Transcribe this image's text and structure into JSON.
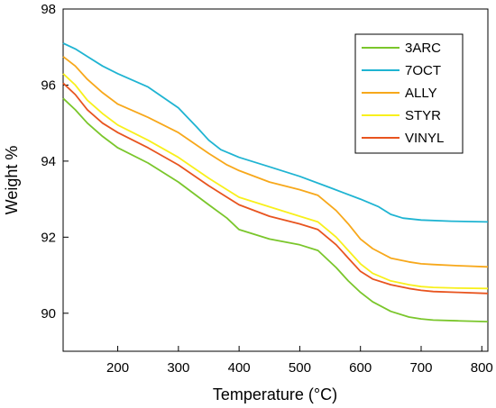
{
  "chart_data": {
    "type": "line",
    "xlabel": "Temperature (°C)",
    "ylabel": "Weight %",
    "xlim": [
      110,
      810
    ],
    "ylim": [
      89,
      98
    ],
    "xticks": [
      200,
      300,
      400,
      500,
      600,
      700,
      800
    ],
    "yticks": [
      90,
      92,
      94,
      96,
      98
    ],
    "grid": false,
    "legend_position": "top-right",
    "series": [
      {
        "name": "3ARC",
        "color": "#7ac62b",
        "x": [
          110,
          130,
          150,
          175,
          200,
          250,
          300,
          350,
          380,
          400,
          450,
          500,
          530,
          560,
          580,
          600,
          620,
          650,
          680,
          700,
          720,
          760,
          810
        ],
        "y": [
          95.65,
          95.35,
          95.0,
          94.65,
          94.35,
          93.95,
          93.45,
          92.85,
          92.5,
          92.2,
          91.95,
          91.8,
          91.65,
          91.2,
          90.85,
          90.55,
          90.3,
          90.05,
          89.9,
          89.85,
          89.82,
          89.8,
          89.78
        ]
      },
      {
        "name": "7OCT",
        "color": "#1fb4d2",
        "x": [
          110,
          130,
          150,
          175,
          200,
          250,
          300,
          330,
          350,
          370,
          400,
          450,
          500,
          550,
          600,
          630,
          650,
          670,
          700,
          750,
          810
        ],
        "y": [
          97.1,
          96.95,
          96.75,
          96.5,
          96.3,
          95.95,
          95.4,
          94.9,
          94.55,
          94.3,
          94.1,
          93.85,
          93.6,
          93.3,
          93.0,
          92.8,
          92.6,
          92.5,
          92.45,
          92.42,
          92.4
        ]
      },
      {
        "name": "ALLY",
        "color": "#f7a81b",
        "x": [
          110,
          130,
          150,
          175,
          200,
          250,
          300,
          350,
          380,
          400,
          450,
          500,
          530,
          560,
          580,
          600,
          620,
          650,
          680,
          700,
          720,
          760,
          810
        ],
        "y": [
          96.75,
          96.5,
          96.15,
          95.8,
          95.5,
          95.15,
          94.75,
          94.2,
          93.9,
          93.75,
          93.45,
          93.25,
          93.1,
          92.7,
          92.35,
          91.95,
          91.7,
          91.45,
          91.35,
          91.3,
          91.28,
          91.25,
          91.22
        ]
      },
      {
        "name": "STYR",
        "color": "#f8f01c",
        "x": [
          110,
          130,
          150,
          175,
          200,
          250,
          300,
          350,
          380,
          400,
          450,
          500,
          530,
          560,
          580,
          600,
          620,
          650,
          680,
          700,
          720,
          760,
          810
        ],
        "y": [
          96.3,
          96.0,
          95.6,
          95.25,
          94.95,
          94.55,
          94.1,
          93.55,
          93.25,
          93.05,
          92.8,
          92.55,
          92.4,
          92.0,
          91.65,
          91.3,
          91.05,
          90.85,
          90.75,
          90.7,
          90.68,
          90.66,
          90.65
        ]
      },
      {
        "name": "VINYL",
        "color": "#e8541f",
        "x": [
          110,
          130,
          150,
          175,
          200,
          250,
          300,
          350,
          380,
          400,
          450,
          500,
          530,
          560,
          580,
          600,
          620,
          650,
          680,
          700,
          720,
          760,
          810
        ],
        "y": [
          96.05,
          95.75,
          95.35,
          95.0,
          94.75,
          94.35,
          93.9,
          93.35,
          93.05,
          92.85,
          92.55,
          92.35,
          92.2,
          91.8,
          91.45,
          91.1,
          90.9,
          90.75,
          90.65,
          90.6,
          90.57,
          90.55,
          90.52
        ]
      }
    ]
  }
}
